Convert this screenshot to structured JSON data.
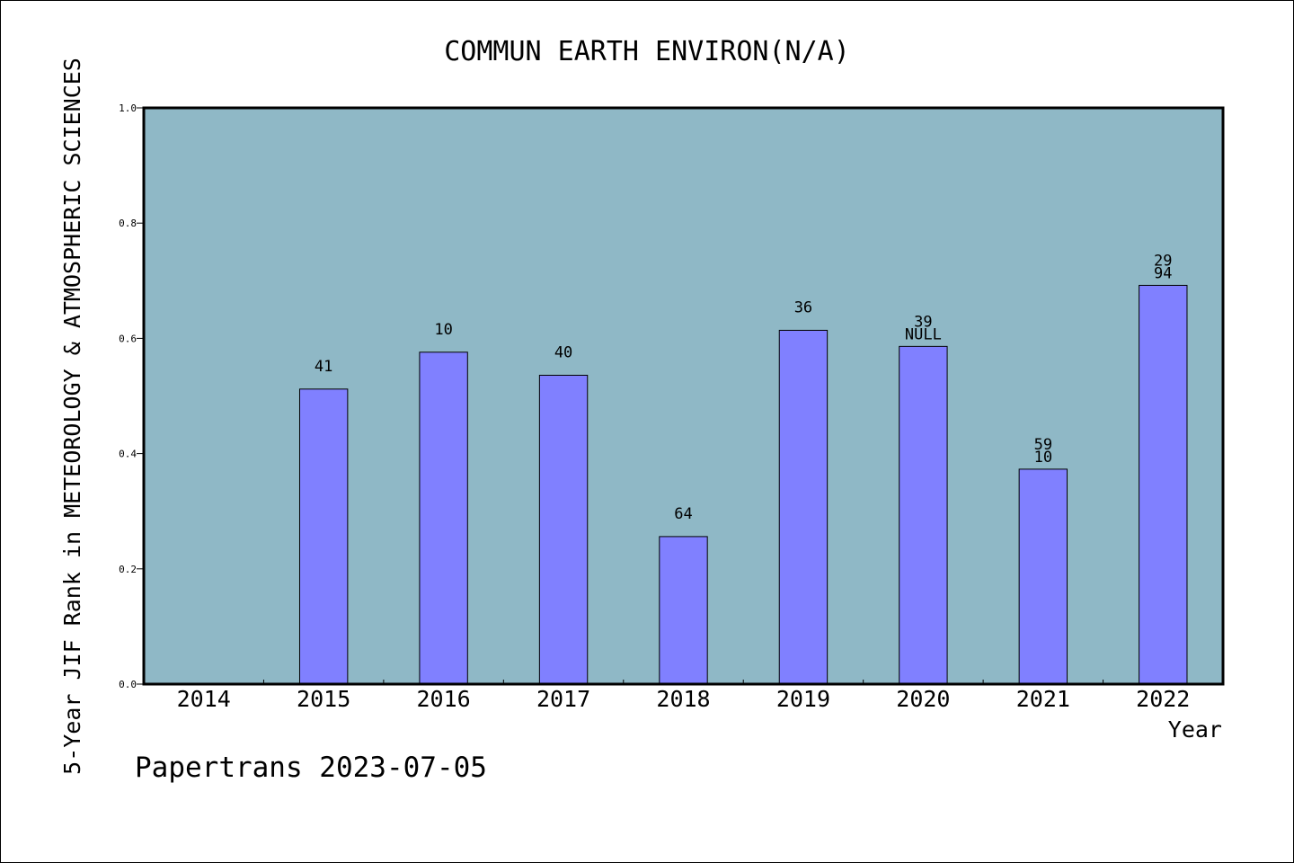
{
  "chart_data": {
    "type": "bar",
    "title": "COMMUN EARTH ENVIRON(N/A)",
    "xlabel": "Year",
    "ylabel": "5-Year JIF Rank in METEOROLOGY & ATMOSPHERIC SCIENCES",
    "categories": [
      "2014",
      "2015",
      "2016",
      "2017",
      "2018",
      "2019",
      "2020",
      "2021",
      "2022"
    ],
    "values": [
      null,
      0.512,
      0.576,
      0.536,
      0.256,
      0.614,
      0.586,
      0.373,
      0.692
    ],
    "bar_labels": [
      [],
      [
        "41"
      ],
      [
        "10"
      ],
      [
        "40"
      ],
      [
        "64"
      ],
      [
        "36"
      ],
      [
        "39",
        "NULL"
      ],
      [
        "59",
        "10"
      ],
      [
        "29",
        "94"
      ]
    ],
    "ylim": [
      0,
      1.0
    ],
    "yticks": [
      "0.0",
      "0.2",
      "0.4",
      "0.6",
      "0.8",
      "1.0"
    ],
    "grid": false,
    "colors": {
      "plot_background": "#8fb8c6",
      "bar_fill": "#8080ff",
      "bar_stroke": "#000000"
    }
  },
  "footer": {
    "text": "Papertrans 2023-07-05"
  }
}
